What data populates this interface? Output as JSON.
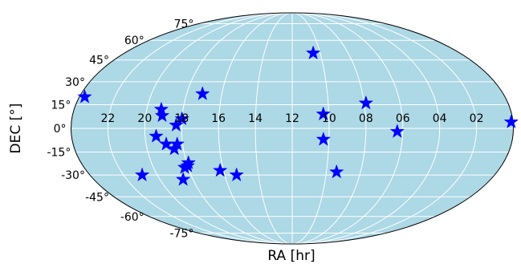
{
  "chart_data": {
    "type": "scatter",
    "projection": "mollweide",
    "xlabel": "RA [hr]",
    "ylabel": "DEC [°]",
    "ra_tick_labels": [
      "22",
      "20",
      "18",
      "16",
      "14",
      "12",
      "10",
      "08",
      "06",
      "04",
      "02"
    ],
    "ra_tick_values": [
      22,
      20,
      18,
      16,
      14,
      12,
      10,
      8,
      6,
      4,
      2
    ],
    "dec_tick_labels": [
      "-75°",
      "-60°",
      "-45°",
      "-30°",
      "-15°",
      "0°",
      "15°",
      "30°",
      "45°",
      "60°",
      "75°"
    ],
    "dec_tick_values": [
      -75,
      -60,
      -45,
      -30,
      -15,
      0,
      15,
      30,
      45,
      60,
      75
    ],
    "xlim": [
      24,
      0
    ],
    "ylim": [
      -90,
      90
    ],
    "grid": true,
    "marker": "star",
    "colors": {
      "background": "#add8e6",
      "marker": "#0000ff",
      "grid": "#ffffff",
      "outline": "#000000"
    },
    "points": [
      {
        "ra": 23.7,
        "dec": 20
      },
      {
        "ra": 19.2,
        "dec": 12
      },
      {
        "ra": 19.1,
        "dec": 8
      },
      {
        "ra": 18.3,
        "dec": 2
      },
      {
        "ra": 18.0,
        "dec": 6
      },
      {
        "ra": 17.1,
        "dec": 22
      },
      {
        "ra": 19.4,
        "dec": -5
      },
      {
        "ra": 18.9,
        "dec": -10
      },
      {
        "ra": 18.5,
        "dec": -13
      },
      {
        "ra": 18.3,
        "dec": -10
      },
      {
        "ra": 18.2,
        "dec": -25
      },
      {
        "ra": 18.0,
        "dec": -24
      },
      {
        "ra": 17.9,
        "dec": -22
      },
      {
        "ra": 18.6,
        "dec": -33
      },
      {
        "ra": 20.9,
        "dec": -30
      },
      {
        "ra": 16.2,
        "dec": -27
      },
      {
        "ra": 15.3,
        "dec": -30
      },
      {
        "ra": 10.5,
        "dec": 50
      },
      {
        "ra": 10.3,
        "dec": 9
      },
      {
        "ra": 10.3,
        "dec": -7
      },
      {
        "ra": 9.4,
        "dec": -28
      },
      {
        "ra": 7.9,
        "dec": 16
      },
      {
        "ra": 6.3,
        "dec": -2
      },
      {
        "ra": 0.1,
        "dec": 4
      }
    ]
  }
}
